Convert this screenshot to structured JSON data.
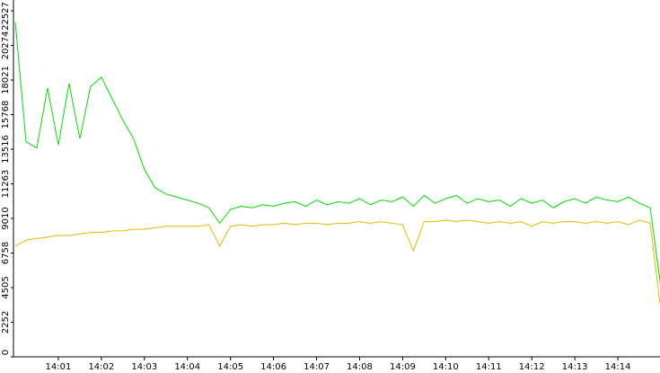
{
  "chart_data": {
    "type": "line",
    "x": [
      "14:00:00",
      "14:00:15",
      "14:00:30",
      "14:00:45",
      "14:01:00",
      "14:01:15",
      "14:01:30",
      "14:01:45",
      "14:02:00",
      "14:02:15",
      "14:02:30",
      "14:02:45",
      "14:03:00",
      "14:03:15",
      "14:03:30",
      "14:03:45",
      "14:04:00",
      "14:04:15",
      "14:04:30",
      "14:04:45",
      "14:05:00",
      "14:05:15",
      "14:05:30",
      "14:05:45",
      "14:06:00",
      "14:06:15",
      "14:06:30",
      "14:06:45",
      "14:07:00",
      "14:07:15",
      "14:07:30",
      "14:07:45",
      "14:08:00",
      "14:08:15",
      "14:08:30",
      "14:08:45",
      "14:09:00",
      "14:09:15",
      "14:09:30",
      "14:09:45",
      "14:10:00",
      "14:10:15",
      "14:10:30",
      "14:10:45",
      "14:11:00",
      "14:11:15",
      "14:11:30",
      "14:11:45",
      "14:12:00",
      "14:12:15",
      "14:12:30",
      "14:12:45",
      "14:13:00",
      "14:13:15",
      "14:13:30",
      "14:13:45",
      "14:14:00",
      "14:14:15",
      "14:14:30",
      "14:14:45",
      "14:15:00"
    ],
    "series": [
      {
        "color": "#00dd00",
        "values": [
          21800,
          14000,
          13600,
          17500,
          13800,
          17800,
          14200,
          17600,
          18200,
          16800,
          15400,
          14200,
          12200,
          11000,
          10600,
          10400,
          10200,
          10000,
          9700,
          8700,
          9600,
          9800,
          9700,
          9900,
          9800,
          10000,
          10100,
          9800,
          10200,
          9900,
          10100,
          10000,
          10300,
          9900,
          10200,
          10100,
          10400,
          9800,
          10500,
          10000,
          10300,
          10500,
          10000,
          10300,
          10100,
          10200,
          9800,
          10300,
          10000,
          10200,
          9700,
          10100,
          10300,
          10000,
          10400,
          10200,
          10100,
          10400,
          10000,
          9700,
          4500
        ]
      },
      {
        "color": "#e6b800",
        "values": [
          7200,
          7600,
          7700,
          7800,
          7900,
          7900,
          8000,
          8100,
          8100,
          8200,
          8200,
          8300,
          8300,
          8400,
          8500,
          8500,
          8500,
          8500,
          8600,
          7200,
          8500,
          8600,
          8500,
          8600,
          8600,
          8700,
          8600,
          8700,
          8700,
          8600,
          8700,
          8700,
          8800,
          8700,
          8800,
          8700,
          8600,
          6900,
          8800,
          8800,
          8900,
          8800,
          8900,
          8800,
          8700,
          8800,
          8700,
          8800,
          8500,
          8800,
          8700,
          8800,
          8800,
          8700,
          8800,
          8700,
          8800,
          8600,
          8900,
          8700,
          3000
        ]
      }
    ],
    "xlim": [
      "14:00:00",
      "14:15:00"
    ],
    "xticks": [
      {
        "value": "14:01:00",
        "label": "14:01"
      },
      {
        "value": "14:02:00",
        "label": "14:02"
      },
      {
        "value": "14:03:00",
        "label": "14:03"
      },
      {
        "value": "14:04:00",
        "label": "14:04"
      },
      {
        "value": "14:05:00",
        "label": "14:05"
      },
      {
        "value": "14:06:00",
        "label": "14:06"
      },
      {
        "value": "14:07:00",
        "label": "14:07"
      },
      {
        "value": "14:08:00",
        "label": "14:08"
      },
      {
        "value": "14:09:00",
        "label": "14:09"
      },
      {
        "value": "14:10:00",
        "label": "14:10"
      },
      {
        "value": "14:11:00",
        "label": "14:11"
      },
      {
        "value": "14:12:00",
        "label": "14:12"
      },
      {
        "value": "14:13:00",
        "label": "14:13"
      },
      {
        "value": "14:14:00",
        "label": "14:14"
      }
    ],
    "ylim": [
      0,
      23230
    ],
    "yticks": [
      0,
      2252,
      4505,
      6758,
      9010,
      11263,
      13516,
      15768,
      18021,
      20274,
      22527
    ]
  }
}
